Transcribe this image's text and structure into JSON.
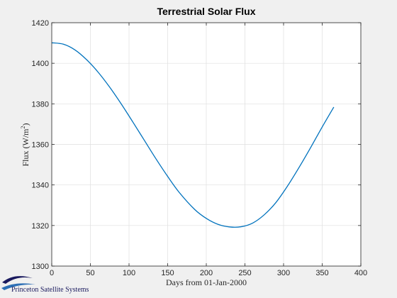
{
  "chart_data": {
    "type": "line",
    "title": "Terrestrial Solar Flux",
    "xlabel": "Days from 01-Jan-2000",
    "ylabel_main": "Flux (W/m",
    "ylabel_sup": "2",
    "ylabel_close": ")",
    "xlim": [
      0,
      400
    ],
    "ylim": [
      1300,
      1420
    ],
    "x_ticks": [
      0,
      50,
      100,
      150,
      200,
      250,
      300,
      350,
      400
    ],
    "y_ticks": [
      1300,
      1320,
      1340,
      1360,
      1380,
      1400,
      1420
    ],
    "grid": true,
    "line_color": "#0072bd",
    "x": [
      0,
      15,
      30,
      45,
      60,
      75,
      90,
      105,
      120,
      135,
      150,
      165,
      185,
      200,
      215,
      230,
      245,
      260,
      275,
      290,
      305,
      320,
      335,
      350,
      365
    ],
    "y": [
      1410.1,
      1409.4,
      1406.6,
      1401.8,
      1395.6,
      1388.2,
      1379.9,
      1371.0,
      1361.9,
      1352.8,
      1344.2,
      1336.3,
      1327.9,
      1323.5,
      1320.6,
      1319.3,
      1319.4,
      1321.2,
      1325.3,
      1331.3,
      1339.4,
      1348.6,
      1358.4,
      1368.6,
      1378.4
    ]
  },
  "logo": {
    "company_name": "Princeton Satellite Systems",
    "colors": [
      "#1a1a5e",
      "#2d6fb5"
    ]
  }
}
